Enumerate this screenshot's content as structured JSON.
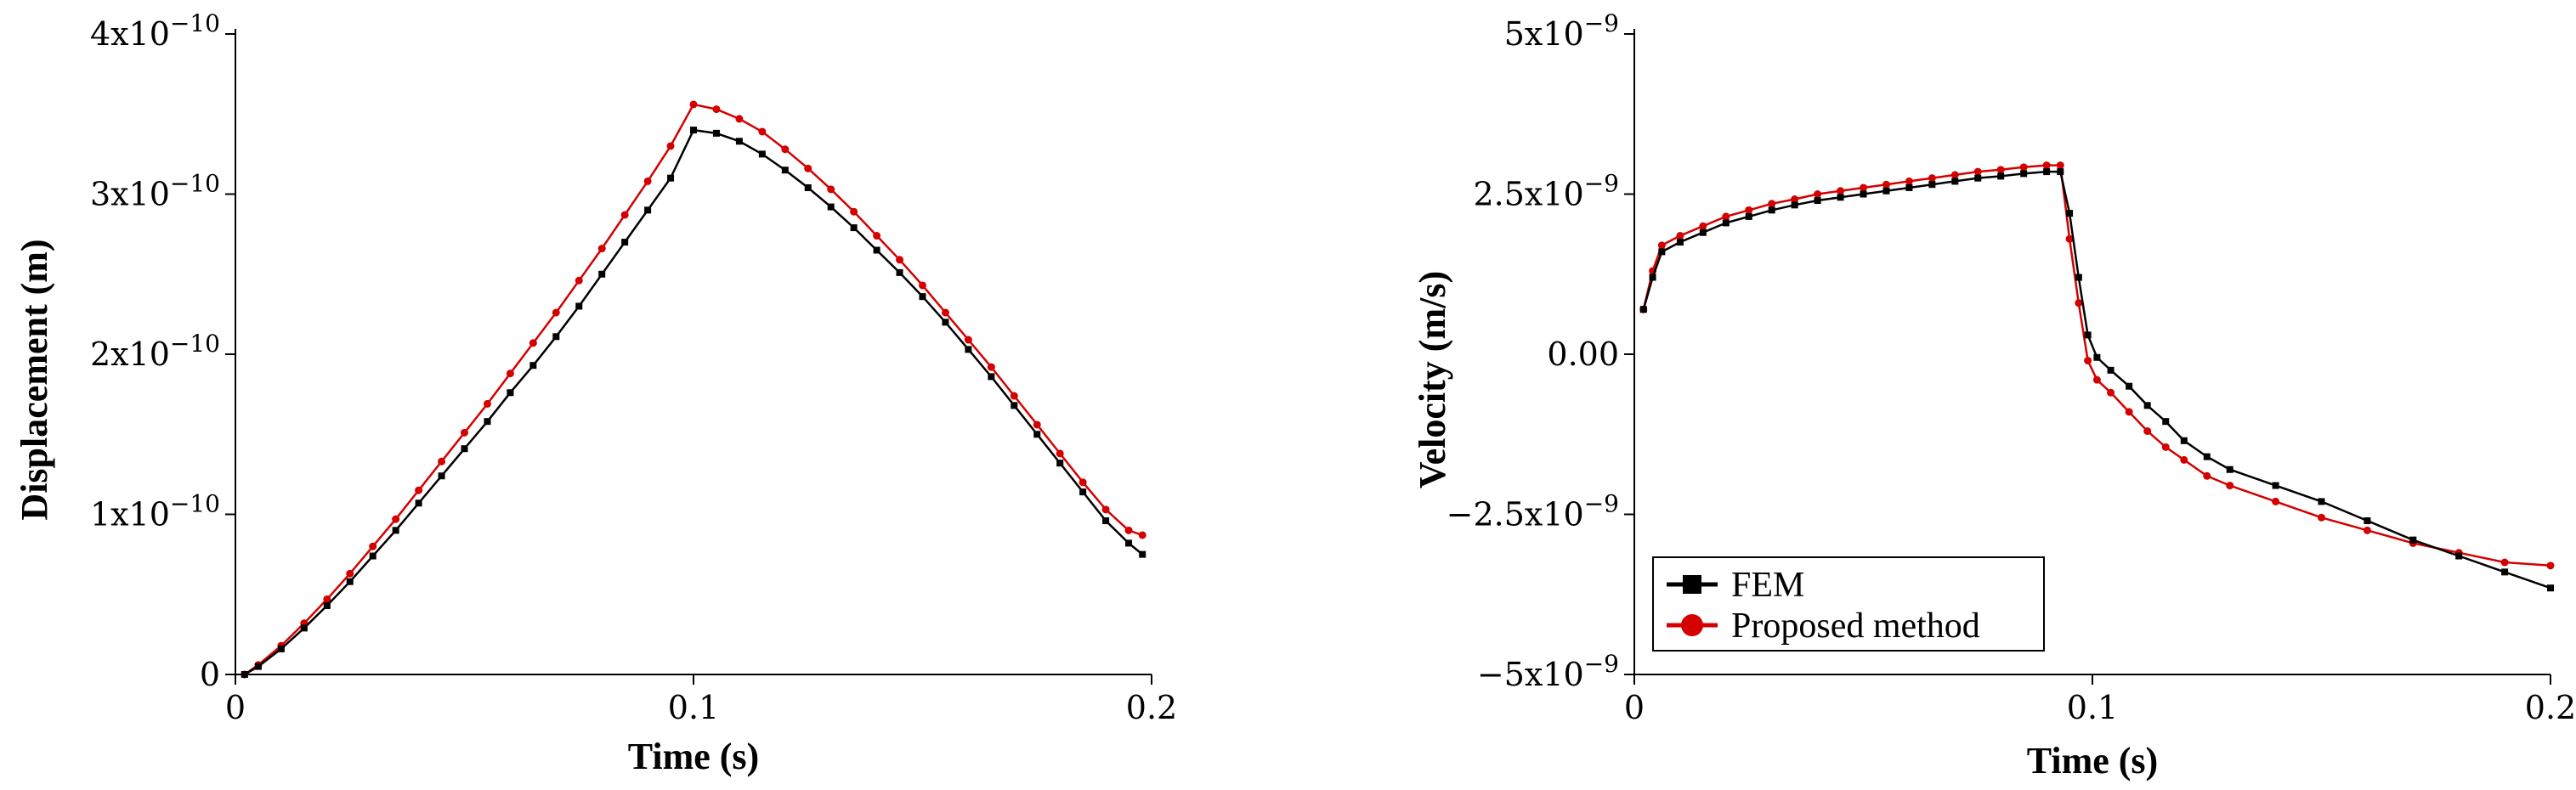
{
  "chart_data": [
    {
      "type": "line",
      "xlabel": "Time (s)",
      "ylabel": "Displacement (m)",
      "xlim": [
        0,
        0.2
      ],
      "ylim": [
        0,
        4e-10
      ],
      "x_ticks": [
        {
          "value": 0,
          "label": "0"
        },
        {
          "value": 0.1,
          "label": "0.1"
        },
        {
          "value": 0.2,
          "label": "0.2"
        }
      ],
      "y_ticks": [
        {
          "value": 0,
          "base": "0",
          "exp": ""
        },
        {
          "value": 1e-10,
          "base": "1x10",
          "exp": "−10"
        },
        {
          "value": 2e-10,
          "base": "2x10",
          "exp": "−10"
        },
        {
          "value": 3e-10,
          "base": "3x10",
          "exp": "−10"
        },
        {
          "value": 4e-10,
          "base": "4x10",
          "exp": "−10"
        }
      ],
      "grid": false,
      "series": [
        {
          "name": "FEM",
          "color": "#000000",
          "marker": "square",
          "x": [
            0.002,
            0.005,
            0.01,
            0.015,
            0.02,
            0.025,
            0.03,
            0.035,
            0.04,
            0.045,
            0.05,
            0.055,
            0.06,
            0.065,
            0.07,
            0.075,
            0.08,
            0.085,
            0.09,
            0.095,
            0.1,
            0.105,
            0.11,
            0.115,
            0.12,
            0.125,
            0.13,
            0.135,
            0.14,
            0.145,
            0.15,
            0.155,
            0.16,
            0.165,
            0.17,
            0.175,
            0.18,
            0.185,
            0.19,
            0.195,
            0.198
          ],
          "y": [
            0,
            5e-12,
            1.6e-11,
            2.9e-11,
            4.3e-11,
            5.8e-11,
            7.4e-11,
            9e-11,
            1.07e-10,
            1.24e-10,
            1.41e-10,
            1.58e-10,
            1.76e-10,
            1.93e-10,
            2.11e-10,
            2.3e-10,
            2.5e-10,
            2.7e-10,
            2.9e-10,
            3.1e-10,
            3.4e-10,
            3.38e-10,
            3.33e-10,
            3.25e-10,
            3.15e-10,
            3.04e-10,
            2.92e-10,
            2.79e-10,
            2.65e-10,
            2.51e-10,
            2.36e-10,
            2.2e-10,
            2.03e-10,
            1.86e-10,
            1.68e-10,
            1.5e-10,
            1.32e-10,
            1.14e-10,
            9.6e-11,
            8.2e-11,
            7.5e-11
          ]
        },
        {
          "name": "Proposed method",
          "color": "#d40000",
          "marker": "circle",
          "x": [
            0.002,
            0.005,
            0.01,
            0.015,
            0.02,
            0.025,
            0.03,
            0.035,
            0.04,
            0.045,
            0.05,
            0.055,
            0.06,
            0.065,
            0.07,
            0.075,
            0.08,
            0.085,
            0.09,
            0.095,
            0.1,
            0.105,
            0.11,
            0.115,
            0.12,
            0.125,
            0.13,
            0.135,
            0.14,
            0.145,
            0.15,
            0.155,
            0.16,
            0.165,
            0.17,
            0.175,
            0.18,
            0.185,
            0.19,
            0.195,
            0.198
          ],
          "y": [
            0,
            6e-12,
            1.8e-11,
            3.2e-11,
            4.7e-11,
            6.3e-11,
            8e-11,
            9.7e-11,
            1.15e-10,
            1.33e-10,
            1.51e-10,
            1.69e-10,
            1.88e-10,
            2.07e-10,
            2.26e-10,
            2.46e-10,
            2.66e-10,
            2.87e-10,
            3.08e-10,
            3.3e-10,
            3.56e-10,
            3.53e-10,
            3.47e-10,
            3.39e-10,
            3.28e-10,
            3.16e-10,
            3.03e-10,
            2.89e-10,
            2.74e-10,
            2.59e-10,
            2.43e-10,
            2.26e-10,
            2.09e-10,
            1.92e-10,
            1.74e-10,
            1.56e-10,
            1.38e-10,
            1.2e-10,
            1.03e-10,
            9e-11,
            8.7e-11
          ]
        }
      ]
    },
    {
      "type": "line",
      "xlabel": "Time (s)",
      "ylabel": "Velocity (m/s)",
      "xlim": [
        0,
        0.2
      ],
      "ylim": [
        -5e-09,
        5e-09
      ],
      "x_ticks": [
        {
          "value": 0,
          "label": "0"
        },
        {
          "value": 0.1,
          "label": "0.1"
        },
        {
          "value": 0.2,
          "label": "0.2"
        }
      ],
      "y_ticks": [
        {
          "value": -5e-09,
          "base": "−5x10",
          "exp": "−9"
        },
        {
          "value": -2.5e-09,
          "base": "−2.5x10",
          "exp": "−9"
        },
        {
          "value": 0,
          "base": "0.00",
          "exp": ""
        },
        {
          "value": 2.5e-09,
          "base": "2.5x10",
          "exp": "−9"
        },
        {
          "value": 5e-09,
          "base": "5x10",
          "exp": "−9"
        }
      ],
      "grid": false,
      "legend": {
        "position": "bottom-left",
        "entries": [
          "FEM",
          "Proposed method"
        ]
      },
      "series": [
        {
          "name": "FEM",
          "color": "#000000",
          "marker": "square",
          "x": [
            0.002,
            0.004,
            0.006,
            0.01,
            0.015,
            0.02,
            0.025,
            0.03,
            0.035,
            0.04,
            0.045,
            0.05,
            0.055,
            0.06,
            0.065,
            0.07,
            0.075,
            0.08,
            0.085,
            0.09,
            0.093,
            0.095,
            0.097,
            0.099,
            0.101,
            0.104,
            0.108,
            0.112,
            0.116,
            0.12,
            0.125,
            0.13,
            0.14,
            0.15,
            0.16,
            0.17,
            0.18,
            0.19,
            0.2
          ],
          "y": [
            7e-10,
            1.2e-09,
            1.6e-09,
            1.75e-09,
            1.9e-09,
            2.05e-09,
            2.15e-09,
            2.25e-09,
            2.33e-09,
            2.4e-09,
            2.45e-09,
            2.5e-09,
            2.55e-09,
            2.6e-09,
            2.65e-09,
            2.7e-09,
            2.75e-09,
            2.78e-09,
            2.82e-09,
            2.85e-09,
            2.85e-09,
            2.2e-09,
            1.2e-09,
            3e-10,
            -5e-11,
            -2.5e-10,
            -5e-10,
            -8e-10,
            -1.05e-09,
            -1.35e-09,
            -1.6e-09,
            -1.8e-09,
            -2.05e-09,
            -2.3e-09,
            -2.6e-09,
            -2.9e-09,
            -3.15e-09,
            -3.4e-09,
            -3.65e-09
          ]
        },
        {
          "name": "Proposed method",
          "color": "#d40000",
          "marker": "circle",
          "x": [
            0.002,
            0.004,
            0.006,
            0.01,
            0.015,
            0.02,
            0.025,
            0.03,
            0.035,
            0.04,
            0.045,
            0.05,
            0.055,
            0.06,
            0.065,
            0.07,
            0.075,
            0.08,
            0.085,
            0.09,
            0.093,
            0.095,
            0.097,
            0.099,
            0.101,
            0.104,
            0.108,
            0.112,
            0.116,
            0.12,
            0.125,
            0.13,
            0.14,
            0.15,
            0.16,
            0.17,
            0.18,
            0.19,
            0.2
          ],
          "y": [
            7e-10,
            1.3e-09,
            1.7e-09,
            1.85e-09,
            2e-09,
            2.15e-09,
            2.25e-09,
            2.35e-09,
            2.42e-09,
            2.5e-09,
            2.55e-09,
            2.6e-09,
            2.65e-09,
            2.7e-09,
            2.75e-09,
            2.8e-09,
            2.85e-09,
            2.88e-09,
            2.92e-09,
            2.95e-09,
            2.95e-09,
            1.8e-09,
            8e-10,
            -1e-10,
            -4e-10,
            -6e-10,
            -9e-10,
            -1.2e-09,
            -1.45e-09,
            -1.65e-09,
            -1.9e-09,
            -2.05e-09,
            -2.3e-09,
            -2.55e-09,
            -2.75e-09,
            -2.95e-09,
            -3.1e-09,
            -3.25e-09,
            -3.3e-09
          ]
        }
      ]
    }
  ]
}
